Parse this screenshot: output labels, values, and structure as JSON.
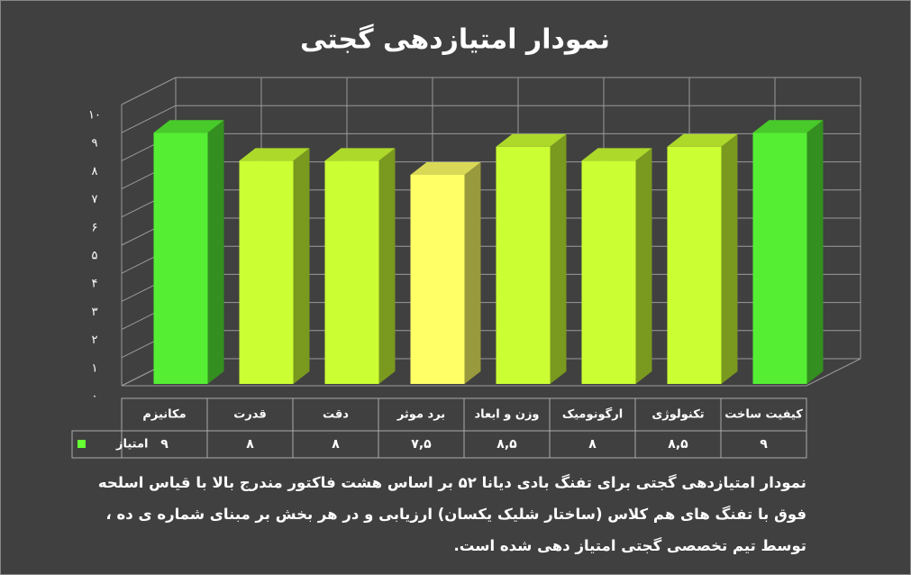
{
  "chart_data": {
    "type": "bar3d",
    "title": "نمودار امتیازدهی گجتی",
    "categories": [
      "مکانیزم",
      "قدرت",
      "دقت",
      "برد موثر",
      "وزن و ابعاد",
      "ارگونومیک",
      "تکنولوژی",
      "کیفیت ساخت"
    ],
    "series": [
      {
        "name": "امتیاز",
        "color": "#66ff33",
        "colors": [
          "#55ee33",
          "#ccff33",
          "#ccff33",
          "#ffff66",
          "#ccff33",
          "#ccff33",
          "#ccff33",
          "#55ee33"
        ],
        "values": [
          9,
          8,
          8,
          7.5,
          8.5,
          8,
          8.5,
          9
        ],
        "value_labels": [
          "۹",
          "۸",
          "۸",
          "۷,۵",
          "۸,۵",
          "۸",
          "۸,۵",
          "۹"
        ]
      }
    ],
    "ylim": [
      0,
      10
    ],
    "yticks": [
      {
        "value": 0,
        "label": "۰"
      },
      {
        "value": 1,
        "label": "۱"
      },
      {
        "value": 2,
        "label": "۲"
      },
      {
        "value": 3,
        "label": "۳"
      },
      {
        "value": 4,
        "label": "۴"
      },
      {
        "value": 5,
        "label": "۵"
      },
      {
        "value": 6,
        "label": "۶"
      },
      {
        "value": 7,
        "label": "۷"
      },
      {
        "value": 8,
        "label": "۸"
      },
      {
        "value": 9,
        "label": "۹"
      },
      {
        "value": 10,
        "label": "۱۰"
      }
    ],
    "grid": true,
    "caption": "نمودار امتیازدهی گجتی برای تفنگ بادی دیانا ۵۲ بر اساس هشت فاکتور مندرج بالا با قیاس اسلحه فوق با تفنگ های هم کلاس (ساختار شلیک یکسان) ارزیابی و در هر بخش بر مبنای شماره ی ده ، توسط تیم تخصصی گجتی امتیاز دهی شده است."
  }
}
